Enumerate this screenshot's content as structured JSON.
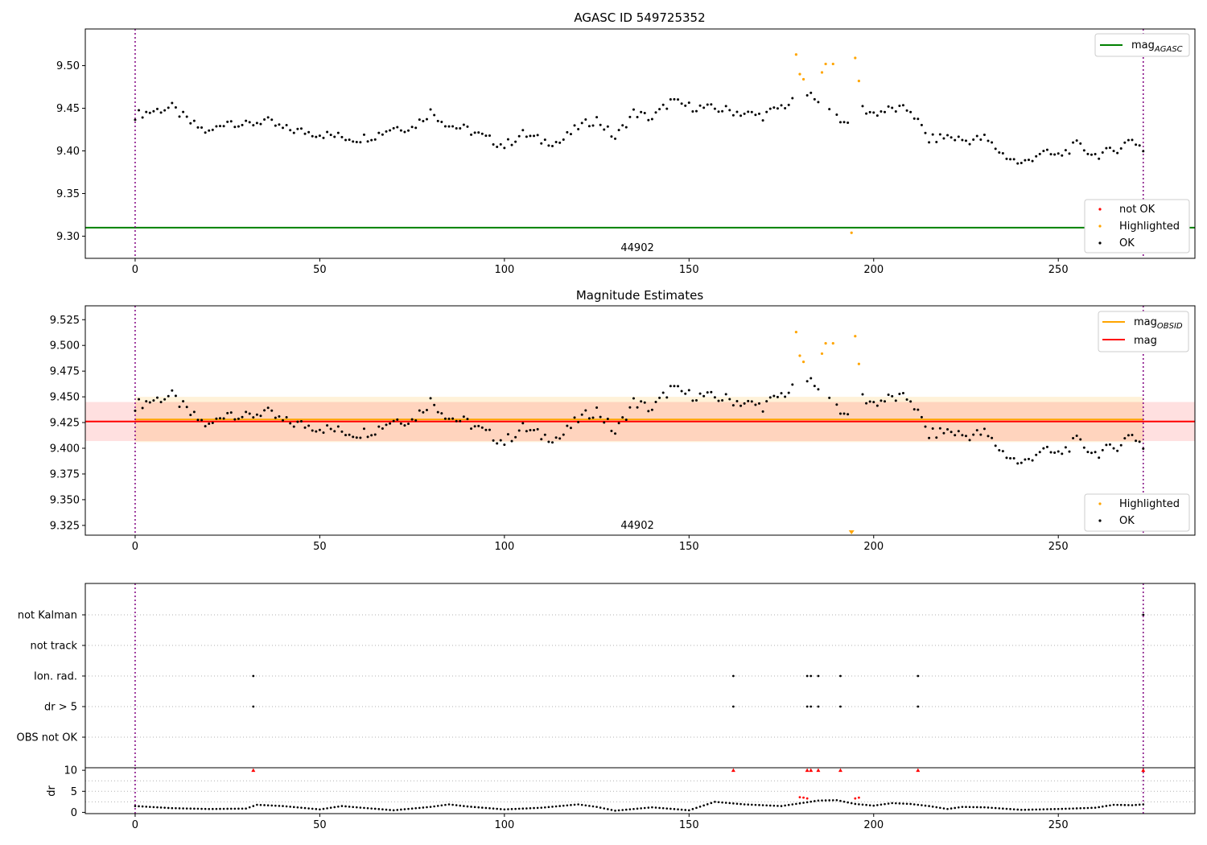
{
  "chart_data": [
    {
      "type": "scatter",
      "title": "AGASC ID 549725352",
      "xlabel": "",
      "ylabel": "",
      "xlim": [
        -13.5,
        287
      ],
      "ylim": [
        9.274,
        9.543
      ],
      "xticks": [
        0,
        50,
        100,
        150,
        200,
        250,
        300
      ],
      "yticks": [
        9.3,
        9.35,
        9.4,
        9.45,
        9.5
      ],
      "ytick_labels": [
        "9.30",
        "9.35",
        "9.40",
        "9.45",
        "9.50"
      ],
      "obsid_label": "44902",
      "obsid_label_x": 136,
      "vlines": [
        0,
        273
      ],
      "hline": {
        "name": "mag_AGASC",
        "y": 9.31,
        "color": "#008000"
      },
      "series": [
        {
          "name": "OK",
          "color": "#000000",
          "x": [
            0,
            5,
            10,
            15,
            20,
            25,
            30,
            35,
            40,
            45,
            50,
            55,
            60,
            65,
            70,
            75,
            80,
            85,
            90,
            95,
            100,
            105,
            110,
            115,
            120,
            125,
            130,
            135,
            140,
            145,
            150,
            155,
            160,
            165,
            170,
            175,
            184,
            192,
            196,
            200,
            205,
            210,
            215,
            220,
            225,
            230,
            235,
            240,
            245,
            250,
            255,
            260,
            265,
            270,
            273
          ],
          "y": [
            9.442,
            9.447,
            9.451,
            9.433,
            9.421,
            9.436,
            9.43,
            9.436,
            9.426,
            9.423,
            9.42,
            9.417,
            9.414,
            9.418,
            9.428,
            9.427,
            9.446,
            9.43,
            9.425,
            9.415,
            9.406,
            9.42,
            9.412,
            9.41,
            9.428,
            9.437,
            9.415,
            9.445,
            9.438,
            9.458,
            9.452,
            9.45,
            9.448,
            9.444,
            9.441,
            9.452,
            9.466,
            9.433,
            9.451,
            9.444,
            9.449,
            9.448,
            9.413,
            9.417,
            9.412,
            9.415,
            9.396,
            9.384,
            9.398,
            9.394,
            9.407,
            9.395,
            9.4,
            9.414,
            9.402
          ]
        },
        {
          "name": "Highlighted",
          "color": "#ffa500",
          "x": [
            179,
            180,
            181,
            186,
            187,
            189,
            194,
            195,
            196
          ],
          "y": [
            9.513,
            9.49,
            9.484,
            9.492,
            9.502,
            9.502,
            9.304,
            9.509,
            9.482
          ]
        },
        {
          "name": "not OK",
          "color": "#ff0000",
          "x": [],
          "y": []
        }
      ],
      "legend": [
        "mag_AGASC",
        "not OK",
        "Highlighted",
        "OK"
      ],
      "legend_placement": "top-right and bottom-right"
    },
    {
      "type": "scatter",
      "title": "Magnitude Estimates",
      "xlabel": "",
      "ylabel": "",
      "xlim": [
        -13.5,
        287
      ],
      "ylim": [
        9.3155,
        9.5385
      ],
      "xticks": [
        0,
        50,
        100,
        150,
        200,
        250,
        300
      ],
      "yticks": [
        9.325,
        9.35,
        9.375,
        9.4,
        9.425,
        9.45,
        9.475,
        9.5,
        9.525
      ],
      "ytick_labels": [
        "9.325",
        "9.350",
        "9.375",
        "9.400",
        "9.425",
        "9.450",
        "9.475",
        "9.500",
        "9.525"
      ],
      "obsid_label": "44902",
      "obsid_label_x": 136,
      "vlines": [
        0,
        273
      ],
      "hlines": [
        {
          "name": "mag_OBSID",
          "y": 9.428,
          "x_range": [
            0,
            273
          ],
          "color": "#ffa500"
        },
        {
          "name": "mag",
          "y": 9.426,
          "x_range": [
            -13.5,
            287
          ],
          "color": "#ff0000"
        }
      ],
      "bands": [
        {
          "y_range": [
            9.406,
            9.45
          ],
          "x_range": [
            0,
            273
          ],
          "color": "#ffa500",
          "opacity": 0.15
        },
        {
          "y_range": [
            9.407,
            9.445
          ],
          "x_range": [
            -13.5,
            287
          ],
          "color": "#ff0000",
          "opacity": 0.12
        }
      ],
      "series": [
        {
          "name": "OK",
          "color": "#000000",
          "same_as_panel": 0
        },
        {
          "name": "Highlighted",
          "color": "#ffa500",
          "x": [
            179,
            180,
            181,
            186,
            187,
            189,
            195,
            196
          ],
          "y": [
            9.513,
            9.49,
            9.484,
            9.492,
            9.502,
            9.502,
            9.509,
            9.482
          ]
        }
      ],
      "clipped_marker": {
        "x": 194,
        "color": "#ffa500"
      },
      "legend": [
        "mag_OBSID",
        "mag",
        "Highlighted",
        "OK"
      ],
      "legend_placement": "top-right and bottom-right"
    },
    {
      "type": "scatter",
      "title": "",
      "xlim": [
        -13.5,
        287
      ],
      "xticks": [
        0,
        50,
        100,
        150,
        200,
        250,
        300
      ],
      "categories": [
        "not Kalman",
        "not track",
        "Ion. rad.",
        "dr > 5",
        "OBS not OK"
      ],
      "vlines": [
        0,
        273
      ],
      "flags": {
        "not Kalman": [
          273
        ],
        "not track": [],
        "Ion. rad.": [
          32,
          162,
          182,
          183,
          185,
          191,
          212
        ],
        "dr > 5": [
          32,
          162,
          182,
          183,
          185,
          191,
          212
        ],
        "OBS not OK": []
      },
      "grid": true
    },
    {
      "type": "scatter",
      "title": "",
      "ylabel": "dr",
      "xlim": [
        -13.5,
        287
      ],
      "ylim": [
        -0.3,
        10.6
      ],
      "xticks": [
        0,
        50,
        100,
        150,
        200,
        250,
        300
      ],
      "yticks": [
        0,
        5,
        10
      ],
      "vlines": [
        0,
        273
      ],
      "series": [
        {
          "name": "OK",
          "color": "#000000",
          "x": [
            0,
            10,
            20,
            30,
            33,
            40,
            50,
            56,
            60,
            70,
            80,
            85,
            90,
            100,
            110,
            120,
            125,
            130,
            140,
            150,
            157,
            165,
            170,
            175,
            185,
            190,
            195,
            200,
            205,
            210,
            215,
            220,
            224,
            230,
            240,
            250,
            260,
            265,
            270,
            273
          ],
          "y": [
            1.5,
            1.0,
            0.8,
            0.9,
            1.8,
            1.5,
            0.7,
            1.5,
            1.2,
            0.5,
            1.3,
            1.9,
            1.4,
            0.7,
            1.1,
            1.9,
            1.3,
            0.4,
            1.2,
            0.5,
            2.5,
            1.9,
            1.7,
            1.5,
            2.8,
            2.9,
            2.0,
            1.6,
            2.2,
            2.0,
            1.5,
            0.8,
            1.3,
            1.2,
            0.6,
            0.8,
            1.1,
            1.8,
            1.7,
            1.9
          ]
        },
        {
          "name": "Highlighted",
          "color": "#ff0000",
          "x": [
            180,
            181,
            182,
            195,
            196
          ],
          "y": [
            3.6,
            3.5,
            3.3,
            3.3,
            3.5
          ]
        },
        {
          "name": "dr > 5",
          "color": "#ff0000",
          "clipped_at": 10,
          "x": [
            32,
            162,
            182,
            183,
            185,
            191,
            212,
            273
          ],
          "y": [
            10,
            10,
            10,
            10,
            10,
            10,
            10,
            10
          ]
        }
      ]
    }
  ],
  "legend_text": {
    "mag_agasc_main": "mag",
    "mag_agasc_sub": "AGASC",
    "not_ok": "not OK",
    "highlighted": "Highlighted",
    "ok": "OK",
    "mag_obsid_main": "mag",
    "mag_obsid_sub": "OBSID",
    "mag": "mag"
  },
  "colors": {
    "ok": "#000000",
    "highlighted": "#ffa500",
    "not_ok": "#ff0000",
    "agasc_line": "#008000",
    "obsid_line": "#ffa500",
    "mag_line": "#ff0000",
    "vline": "#800080"
  }
}
